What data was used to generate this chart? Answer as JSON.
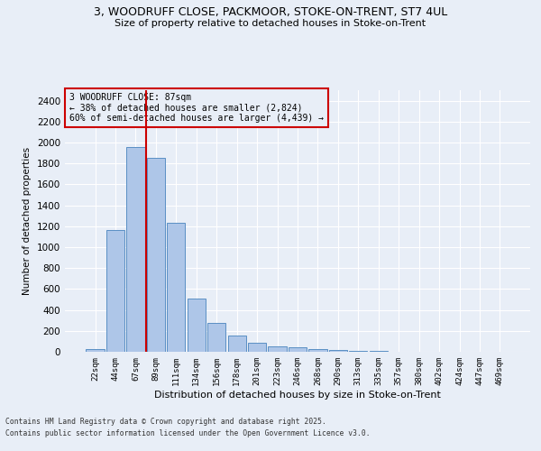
{
  "title_line1": "3, WOODRUFF CLOSE, PACKMOOR, STOKE-ON-TRENT, ST7 4UL",
  "title_line2": "Size of property relative to detached houses in Stoke-on-Trent",
  "xlabel": "Distribution of detached houses by size in Stoke-on-Trent",
  "ylabel": "Number of detached properties",
  "categories": [
    "22sqm",
    "44sqm",
    "67sqm",
    "89sqm",
    "111sqm",
    "134sqm",
    "156sqm",
    "178sqm",
    "201sqm",
    "223sqm",
    "246sqm",
    "268sqm",
    "290sqm",
    "313sqm",
    "335sqm",
    "357sqm",
    "380sqm",
    "402sqm",
    "424sqm",
    "447sqm",
    "469sqm"
  ],
  "values": [
    30,
    1160,
    1960,
    1850,
    1230,
    510,
    275,
    155,
    90,
    52,
    40,
    25,
    18,
    10,
    5,
    3,
    2,
    1,
    1,
    1,
    1
  ],
  "bar_color": "#aec6e8",
  "bar_edge_color": "#5a8fc4",
  "vline_color": "#cc0000",
  "annotation_text": "3 WOODRUFF CLOSE: 87sqm\n← 38% of detached houses are smaller (2,824)\n60% of semi-detached houses are larger (4,439) →",
  "annotation_box_color": "#cc0000",
  "ylim": [
    0,
    2500
  ],
  "yticks": [
    0,
    200,
    400,
    600,
    800,
    1000,
    1200,
    1400,
    1600,
    1800,
    2000,
    2200,
    2400
  ],
  "background_color": "#e8eef7",
  "grid_color": "#ffffff",
  "footer_line1": "Contains HM Land Registry data © Crown copyright and database right 2025.",
  "footer_line2": "Contains public sector information licensed under the Open Government Licence v3.0."
}
